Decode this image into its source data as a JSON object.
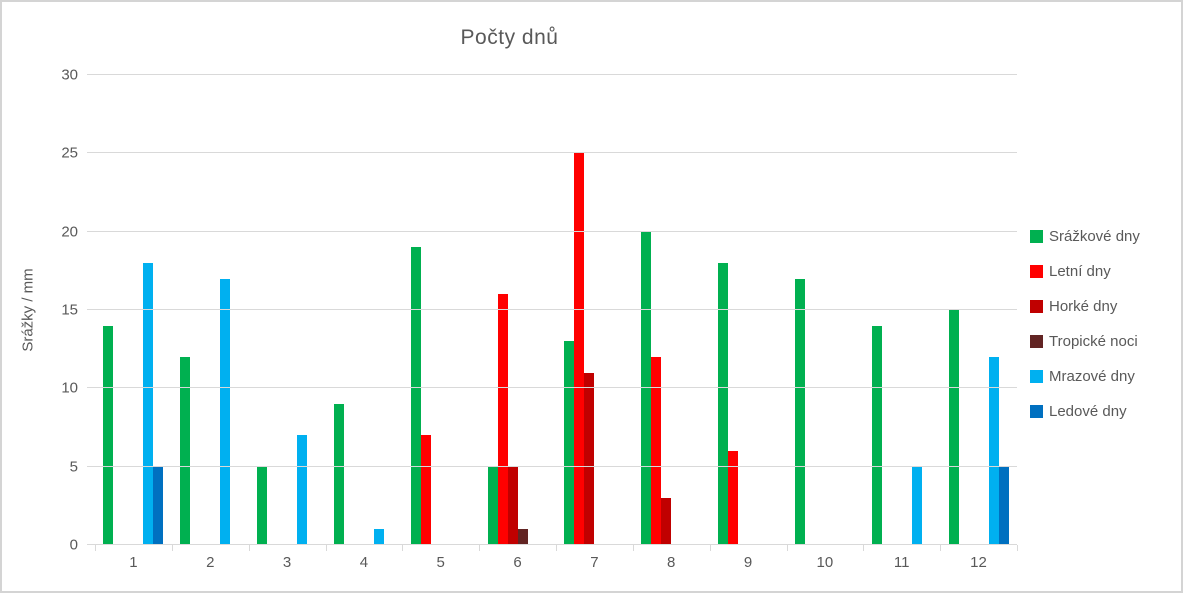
{
  "chart_data": {
    "type": "bar",
    "title": "Počty dnů",
    "xlabel": "",
    "ylabel": "Srážky / mm",
    "ylim": [
      0,
      30
    ],
    "ytick_step": 5,
    "grid": true,
    "legend_position": "right",
    "categories": [
      "1",
      "2",
      "3",
      "4",
      "5",
      "6",
      "7",
      "8",
      "9",
      "10",
      "11",
      "12"
    ],
    "series": [
      {
        "name": "Srážkové dny",
        "color": "#00B050",
        "values": [
          14,
          12,
          5,
          9,
          19,
          5,
          13,
          20,
          18,
          17,
          14,
          15
        ]
      },
      {
        "name": "Letní dny",
        "color": "#FF0000",
        "values": [
          0,
          0,
          0,
          0,
          7,
          16,
          25,
          12,
          6,
          0,
          0,
          0
        ]
      },
      {
        "name": "Horké dny",
        "color": "#C00000",
        "values": [
          0,
          0,
          0,
          0,
          0,
          5,
          11,
          3,
          0,
          0,
          0,
          0
        ]
      },
      {
        "name": "Tropické noci",
        "color": "#622423",
        "values": [
          0,
          0,
          0,
          0,
          0,
          1,
          0,
          0,
          0,
          0,
          0,
          0
        ]
      },
      {
        "name": "Mrazové dny",
        "color": "#00B0F0",
        "values": [
          18,
          17,
          7,
          1,
          0,
          0,
          0,
          0,
          0,
          0,
          5,
          12
        ]
      },
      {
        "name": "Ledové dny",
        "color": "#0070C0",
        "values": [
          5,
          0,
          0,
          0,
          0,
          0,
          0,
          0,
          0,
          0,
          0,
          5
        ]
      }
    ],
    "colors": {
      "text": "#595959",
      "grid": "#D9D9D9",
      "background": "#FFFFFF"
    }
  }
}
